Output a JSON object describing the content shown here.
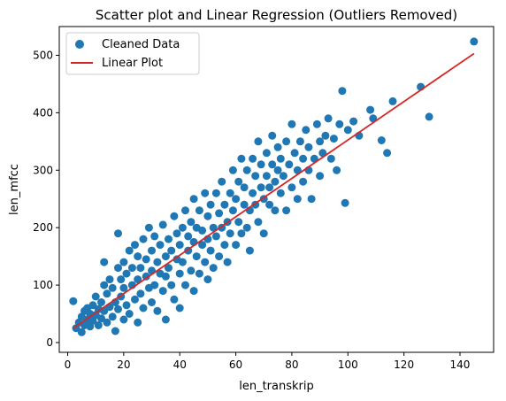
{
  "chart_data": {
    "type": "scatter",
    "title": "Scatter plot and Linear Regression (Outliers Removed)",
    "xlabel": "len_transkrip",
    "ylabel": "len_mfcc",
    "xlim": [
      -3,
      152
    ],
    "ylim": [
      -17,
      550
    ],
    "xticks": [
      0,
      20,
      40,
      60,
      80,
      100,
      120,
      140
    ],
    "yticks": [
      0,
      100,
      200,
      300,
      400,
      500
    ],
    "grid": false,
    "legend_position": "top-left",
    "colors": {
      "scatter": "#1f77b4",
      "line": "#d62728"
    },
    "series": [
      {
        "name": "Cleaned Data",
        "kind": "scatter",
        "points": [
          [
            2,
            72
          ],
          [
            3,
            25
          ],
          [
            4,
            35
          ],
          [
            5,
            45
          ],
          [
            5,
            18
          ],
          [
            6,
            55
          ],
          [
            6,
            30
          ],
          [
            7,
            60
          ],
          [
            7,
            40
          ],
          [
            8,
            50
          ],
          [
            8,
            28
          ],
          [
            9,
            65
          ],
          [
            9,
            38
          ],
          [
            10,
            48
          ],
          [
            10,
            80
          ],
          [
            11,
            58
          ],
          [
            11,
            30
          ],
          [
            12,
            70
          ],
          [
            12,
            42
          ],
          [
            13,
            100
          ],
          [
            13,
            55
          ],
          [
            13,
            140
          ],
          [
            14,
            35
          ],
          [
            14,
            85
          ],
          [
            15,
            62
          ],
          [
            15,
            110
          ],
          [
            16,
            45
          ],
          [
            16,
            95
          ],
          [
            17,
            70
          ],
          [
            17,
            20
          ],
          [
            18,
            130
          ],
          [
            18,
            58
          ],
          [
            18,
            190
          ],
          [
            19,
            80
          ],
          [
            19,
            110
          ],
          [
            20,
            40
          ],
          [
            20,
            95
          ],
          [
            20,
            140
          ],
          [
            21,
            65
          ],
          [
            21,
            120
          ],
          [
            22,
            160
          ],
          [
            22,
            50
          ],
          [
            23,
            100
          ],
          [
            23,
            130
          ],
          [
            24,
            75
          ],
          [
            24,
            170
          ],
          [
            25,
            110
          ],
          [
            25,
            35
          ],
          [
            25,
            150
          ],
          [
            26,
            85
          ],
          [
            26,
            130
          ],
          [
            27,
            180
          ],
          [
            27,
            60
          ],
          [
            28,
            115
          ],
          [
            28,
            145
          ],
          [
            29,
            95
          ],
          [
            29,
            200
          ],
          [
            30,
            70
          ],
          [
            30,
            160
          ],
          [
            30,
            125
          ],
          [
            31,
            100
          ],
          [
            31,
            185
          ],
          [
            32,
            140
          ],
          [
            32,
            55
          ],
          [
            33,
            120
          ],
          [
            33,
            170
          ],
          [
            34,
            90
          ],
          [
            34,
            205
          ],
          [
            35,
            150
          ],
          [
            35,
            115
          ],
          [
            35,
            40
          ],
          [
            36,
            180
          ],
          [
            36,
            130
          ],
          [
            37,
            100
          ],
          [
            37,
            160
          ],
          [
            38,
            220
          ],
          [
            38,
            75
          ],
          [
            39,
            145
          ],
          [
            39,
            190
          ],
          [
            40,
            120
          ],
          [
            40,
            170
          ],
          [
            40,
            60
          ],
          [
            41,
            200
          ],
          [
            41,
            140
          ],
          [
            42,
            100
          ],
          [
            42,
            230
          ],
          [
            43,
            160
          ],
          [
            43,
            185
          ],
          [
            44,
            125
          ],
          [
            44,
            210
          ],
          [
            45,
            90
          ],
          [
            45,
            175
          ],
          [
            45,
            250
          ],
          [
            46,
            150
          ],
          [
            46,
            200
          ],
          [
            47,
            120
          ],
          [
            47,
            230
          ],
          [
            48,
            170
          ],
          [
            48,
            195
          ],
          [
            49,
            140
          ],
          [
            49,
            260
          ],
          [
            50,
            180
          ],
          [
            50,
            110
          ],
          [
            50,
            220
          ],
          [
            51,
            160
          ],
          [
            51,
            240
          ],
          [
            52,
            200
          ],
          [
            52,
            130
          ],
          [
            53,
            260
          ],
          [
            53,
            185
          ],
          [
            54,
            150
          ],
          [
            54,
            225
          ],
          [
            55,
            200
          ],
          [
            55,
            280
          ],
          [
            56,
            170
          ],
          [
            56,
            240
          ],
          [
            57,
            210
          ],
          [
            57,
            140
          ],
          [
            58,
            260
          ],
          [
            58,
            190
          ],
          [
            59,
            230
          ],
          [
            59,
            300
          ],
          [
            60,
            170
          ],
          [
            60,
            250
          ],
          [
            61,
            210
          ],
          [
            61,
            280
          ],
          [
            62,
            190
          ],
          [
            62,
            320
          ],
          [
            63,
            240
          ],
          [
            63,
            270
          ],
          [
            64,
            200
          ],
          [
            64,
            300
          ],
          [
            65,
            230
          ],
          [
            65,
            160
          ],
          [
            66,
            260
          ],
          [
            66,
            320
          ],
          [
            67,
            240
          ],
          [
            67,
            290
          ],
          [
            68,
            210
          ],
          [
            68,
            350
          ],
          [
            69,
            270
          ],
          [
            69,
            310
          ],
          [
            70,
            250
          ],
          [
            70,
            190
          ],
          [
            71,
            290
          ],
          [
            71,
            330
          ],
          [
            72,
            240
          ],
          [
            72,
            270
          ],
          [
            73,
            310
          ],
          [
            73,
            360
          ],
          [
            74,
            280
          ],
          [
            74,
            230
          ],
          [
            75,
            300
          ],
          [
            75,
            340
          ],
          [
            76,
            260
          ],
          [
            76,
            320
          ],
          [
            77,
            290
          ],
          [
            78,
            350
          ],
          [
            78,
            230
          ],
          [
            79,
            310
          ],
          [
            80,
            270
          ],
          [
            80,
            380
          ],
          [
            81,
            330
          ],
          [
            82,
            300
          ],
          [
            82,
            250
          ],
          [
            83,
            350
          ],
          [
            84,
            320
          ],
          [
            84,
            280
          ],
          [
            85,
            370
          ],
          [
            86,
            300
          ],
          [
            86,
            340
          ],
          [
            87,
            250
          ],
          [
            88,
            320
          ],
          [
            89,
            380
          ],
          [
            90,
            350
          ],
          [
            90,
            290
          ],
          [
            91,
            330
          ],
          [
            92,
            360
          ],
          [
            93,
            390
          ],
          [
            94,
            320
          ],
          [
            95,
            355
          ],
          [
            96,
            300
          ],
          [
            97,
            380
          ],
          [
            98,
            438
          ],
          [
            99,
            243
          ],
          [
            100,
            370
          ],
          [
            102,
            385
          ],
          [
            104,
            360
          ],
          [
            108,
            405
          ],
          [
            109,
            390
          ],
          [
            112,
            352
          ],
          [
            114,
            330
          ],
          [
            116,
            420
          ],
          [
            126,
            445
          ],
          [
            129,
            393
          ],
          [
            145,
            524
          ]
        ]
      },
      {
        "name": "Linear Plot",
        "kind": "line",
        "points": [
          [
            2,
            25
          ],
          [
            145,
            503
          ]
        ]
      }
    ]
  }
}
